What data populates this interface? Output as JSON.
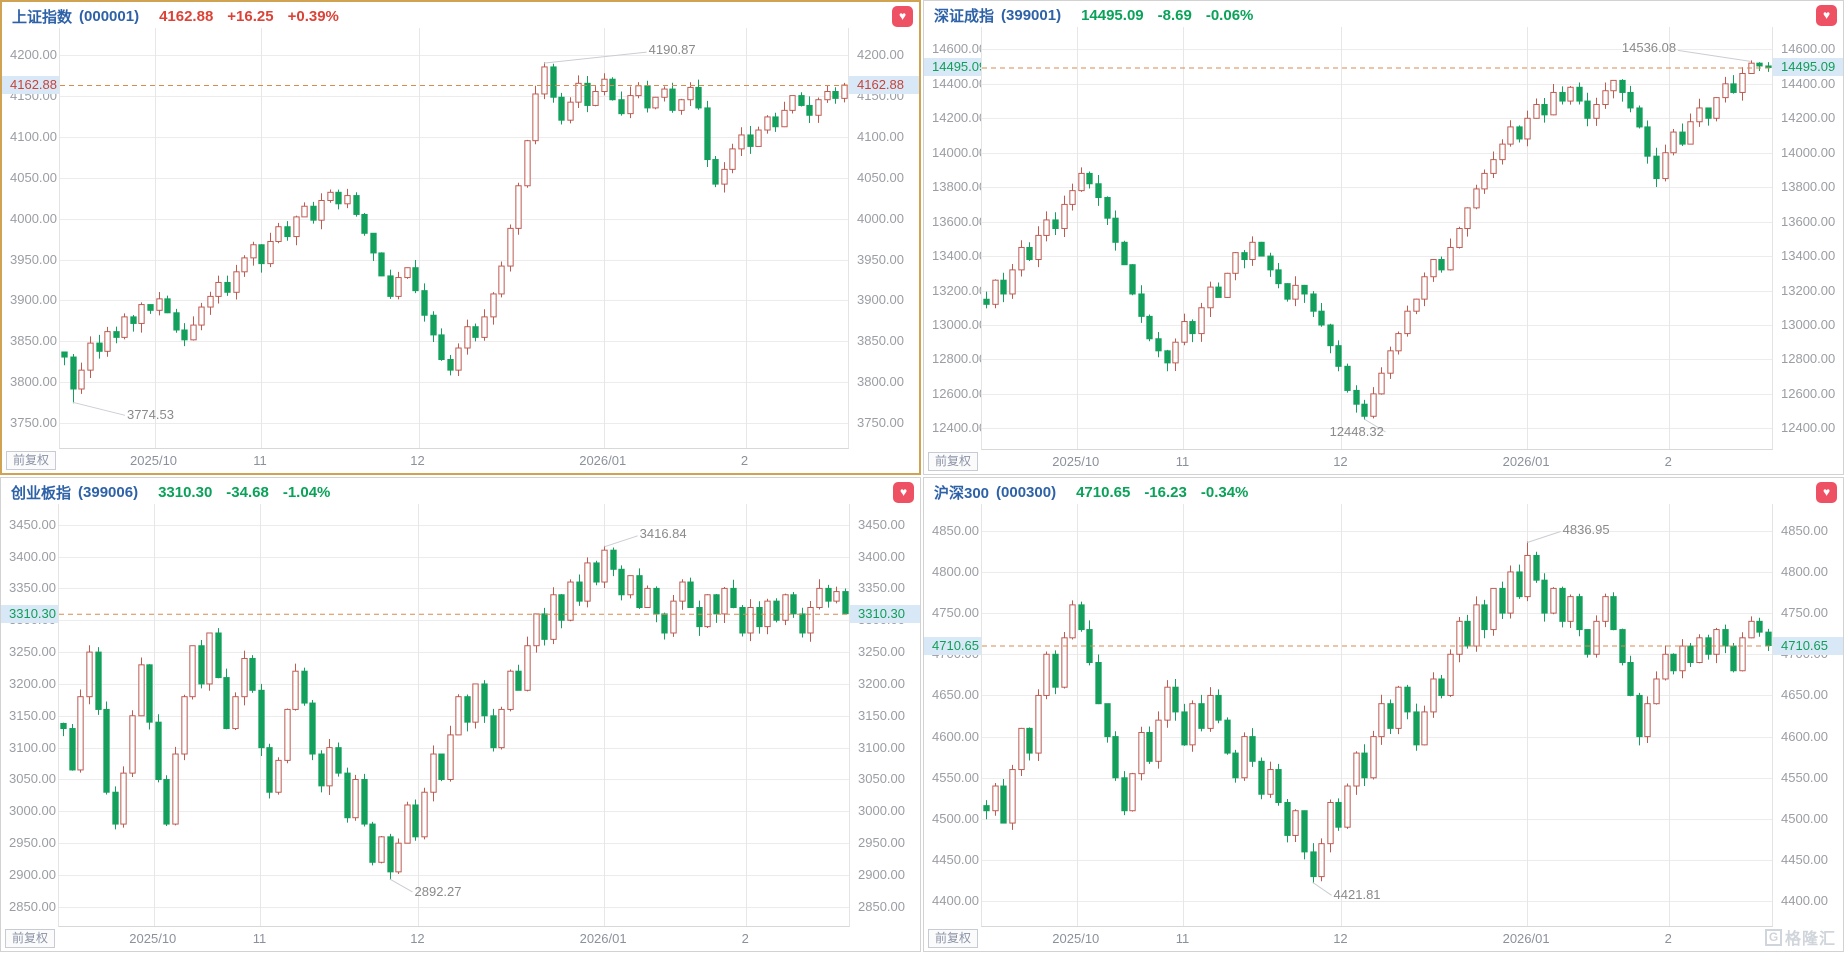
{
  "ui": {
    "adjust_mode_label": "前复权",
    "watermark_logo": "G",
    "watermark_text": "格隆汇",
    "favorite_glyph": "♥"
  },
  "colors": {
    "candle_up": "#bf5b51",
    "candle_down": "#12a05c",
    "dashed_line": "#d98a4f",
    "price_tag_bg": "#d9e8f7",
    "price_tag_up_text": "#c5443b",
    "price_tag_down_text": "#0f9e58",
    "index_name_blue": "#2e62a8",
    "header_up_red": "#dc4337",
    "header_down_green": "#0aa258",
    "axis_text": "#9a9da3",
    "annotation_text": "#8a8a8a",
    "grid_line": "#ececec",
    "selected_panel_border": "#cfa352",
    "favorite_button": "#ee5164"
  },
  "x_axis": {
    "months": [
      {
        "label": "2025/10",
        "fx": 0.12
      },
      {
        "label": "11",
        "fx": 0.255
      },
      {
        "label": "12",
        "fx": 0.455
      },
      {
        "label": "2026/01",
        "fx": 0.69
      },
      {
        "label": "2",
        "fx": 0.87
      }
    ]
  },
  "chart_data": [
    {
      "type": "candlestick",
      "title": "上证指数",
      "code": "(000001)",
      "last": "4162.88",
      "change": "+16.25",
      "change_pct": "+0.39%",
      "direction": "up",
      "current_price": 4162.88,
      "y_ticks": [
        "4200.00",
        "4150.00",
        "4100.00",
        "4050.00",
        "4000.00",
        "3950.00",
        "3900.00",
        "3850.00",
        "3800.00",
        "3750.00"
      ],
      "high_point": {
        "index": 56,
        "value": 4190.87,
        "label": "4190.87",
        "label_fx": 0.747
      },
      "low_point": {
        "index": 1,
        "value": 3774.53,
        "label": "3774.53",
        "label_fx": 0.085
      },
      "closes": [
        3831,
        3792,
        3815,
        3848,
        3838,
        3862,
        3855,
        3880,
        3872,
        3895,
        3888,
        3902,
        3885,
        3864,
        3852,
        3870,
        3892,
        3905,
        3922,
        3910,
        3935,
        3952,
        3968,
        3945,
        3972,
        3990,
        3978,
        4002,
        4015,
        3998,
        4022,
        4032,
        4018,
        4028,
        4005,
        3982,
        3958,
        3930,
        3905,
        3928,
        3940,
        3912,
        3882,
        3858,
        3828,
        3815,
        3842,
        3868,
        3855,
        3880,
        3908,
        3942,
        3988,
        4040,
        4095,
        4152,
        4185,
        4148,
        4120,
        4142,
        4165,
        4138,
        4155,
        4170,
        4145,
        4128,
        4150,
        4162,
        4135,
        4148,
        4158,
        4132,
        4145,
        4160,
        4135,
        4072,
        4042,
        4060,
        4085,
        4102,
        4088,
        4108,
        4124,
        4112,
        4132,
        4150,
        4138,
        4126,
        4145,
        4155,
        4146.63,
        4162.88
      ]
    },
    {
      "type": "candlestick",
      "title": "深证成指",
      "code": "(399001)",
      "last": "14495.09",
      "change": "-8.69",
      "change_pct": "-0.06%",
      "direction": "down",
      "current_price": 14495.09,
      "y_ticks": [
        "14600.00",
        "14400.00",
        "14200.00",
        "14000.00",
        "13800.00",
        "13600.00",
        "13400.00",
        "13200.00",
        "13000.00",
        "12800.00",
        "12600.00",
        "12400.00"
      ],
      "high_point": {
        "index": 89,
        "value": 14536.08,
        "label": "14536.08",
        "label_fx": 0.81
      },
      "low_point": {
        "index": 44,
        "value": 12448.32,
        "label": "12448.32",
        "label_fx": 0.44
      },
      "closes": [
        13120,
        13260,
        13180,
        13320,
        13450,
        13380,
        13520,
        13610,
        13560,
        13700,
        13780,
        13880,
        13820,
        13740,
        13620,
        13480,
        13350,
        13180,
        13050,
        12920,
        12850,
        12780,
        12900,
        13020,
        12950,
        13100,
        13220,
        13160,
        13300,
        13420,
        13380,
        13480,
        13400,
        13320,
        13240,
        13150,
        13230,
        13180,
        13080,
        13000,
        12880,
        12760,
        12620,
        12540,
        12470,
        12600,
        12720,
        12850,
        12950,
        13080,
        13150,
        13280,
        13380,
        13320,
        13450,
        13560,
        13680,
        13790,
        13880,
        13960,
        14050,
        14150,
        14080,
        14200,
        14280,
        14220,
        14350,
        14300,
        14380,
        14300,
        14200,
        14280,
        14360,
        14420,
        14350,
        14260,
        14150,
        13980,
        13850,
        14000,
        14120,
        14050,
        14180,
        14260,
        14200,
        14320,
        14400,
        14350,
        14460,
        14520,
        14503.78,
        14495.09
      ]
    },
    {
      "type": "candlestick",
      "title": "创业板指",
      "code": "(399006)",
      "last": "3310.30",
      "change": "-34.68",
      "change_pct": "-1.04%",
      "direction": "down",
      "current_price": 3310.3,
      "y_ticks": [
        "3450.00",
        "3400.00",
        "3350.00",
        "3300.00",
        "3250.00",
        "3200.00",
        "3150.00",
        "3100.00",
        "3050.00",
        "3000.00",
        "2950.00",
        "2900.00",
        "2850.00"
      ],
      "high_point": {
        "index": 63,
        "value": 3416.84,
        "label": "3416.84",
        "label_fx": 0.735
      },
      "low_point": {
        "index": 38,
        "value": 2892.27,
        "label": "2892.27",
        "label_fx": 0.45
      },
      "closes": [
        3130,
        3065,
        3180,
        3250,
        3160,
        3030,
        2980,
        3060,
        3150,
        3230,
        3140,
        3050,
        2980,
        3090,
        3180,
        3260,
        3200,
        3280,
        3210,
        3130,
        3180,
        3240,
        3190,
        3100,
        3030,
        3080,
        3160,
        3220,
        3170,
        3090,
        3040,
        3100,
        3060,
        2990,
        3050,
        2980,
        2920,
        2960,
        2905,
        2950,
        3010,
        2960,
        3030,
        3090,
        3050,
        3120,
        3180,
        3140,
        3200,
        3150,
        3100,
        3160,
        3220,
        3190,
        3260,
        3310,
        3270,
        3340,
        3300,
        3360,
        3330,
        3390,
        3360,
        3410,
        3380,
        3340,
        3370,
        3320,
        3350,
        3310,
        3280,
        3330,
        3360,
        3320,
        3290,
        3340,
        3310,
        3350,
        3320,
        3280,
        3320,
        3290,
        3330,
        3300,
        3340,
        3310,
        3280,
        3320,
        3350,
        3330,
        3344.98,
        3310.3
      ]
    },
    {
      "type": "candlestick",
      "title": "沪深300",
      "code": "(000300)",
      "last": "4710.65",
      "change": "-16.23",
      "change_pct": "-0.34%",
      "direction": "down",
      "current_price": 4710.65,
      "y_ticks": [
        "4850.00",
        "4800.00",
        "4750.00",
        "4700.00",
        "4650.00",
        "4600.00",
        "4550.00",
        "4500.00",
        "4450.00",
        "4400.00"
      ],
      "high_point": {
        "index": 63,
        "value": 4836.95,
        "label": "4836.95",
        "label_fx": 0.735
      },
      "low_point": {
        "index": 38,
        "value": 4421.81,
        "label": "4421.81",
        "label_fx": 0.445
      },
      "closes": [
        4510,
        4540,
        4495,
        4560,
        4610,
        4580,
        4650,
        4700,
        4660,
        4720,
        4760,
        4730,
        4690,
        4640,
        4600,
        4550,
        4510,
        4555,
        4605,
        4570,
        4620,
        4660,
        4630,
        4590,
        4640,
        4610,
        4650,
        4620,
        4580,
        4550,
        4600,
        4570,
        4530,
        4560,
        4520,
        4480,
        4510,
        4460,
        4430,
        4470,
        4520,
        4490,
        4540,
        4580,
        4550,
        4600,
        4640,
        4610,
        4660,
        4630,
        4590,
        4630,
        4670,
        4650,
        4700,
        4740,
        4710,
        4760,
        4730,
        4780,
        4750,
        4800,
        4770,
        4820,
        4790,
        4750,
        4780,
        4740,
        4770,
        4730,
        4700,
        4740,
        4770,
        4730,
        4690,
        4650,
        4600,
        4640,
        4670,
        4700,
        4680,
        4710,
        4690,
        4720,
        4700,
        4730,
        4710,
        4680,
        4720,
        4740,
        4726.88,
        4710.65
      ]
    }
  ]
}
